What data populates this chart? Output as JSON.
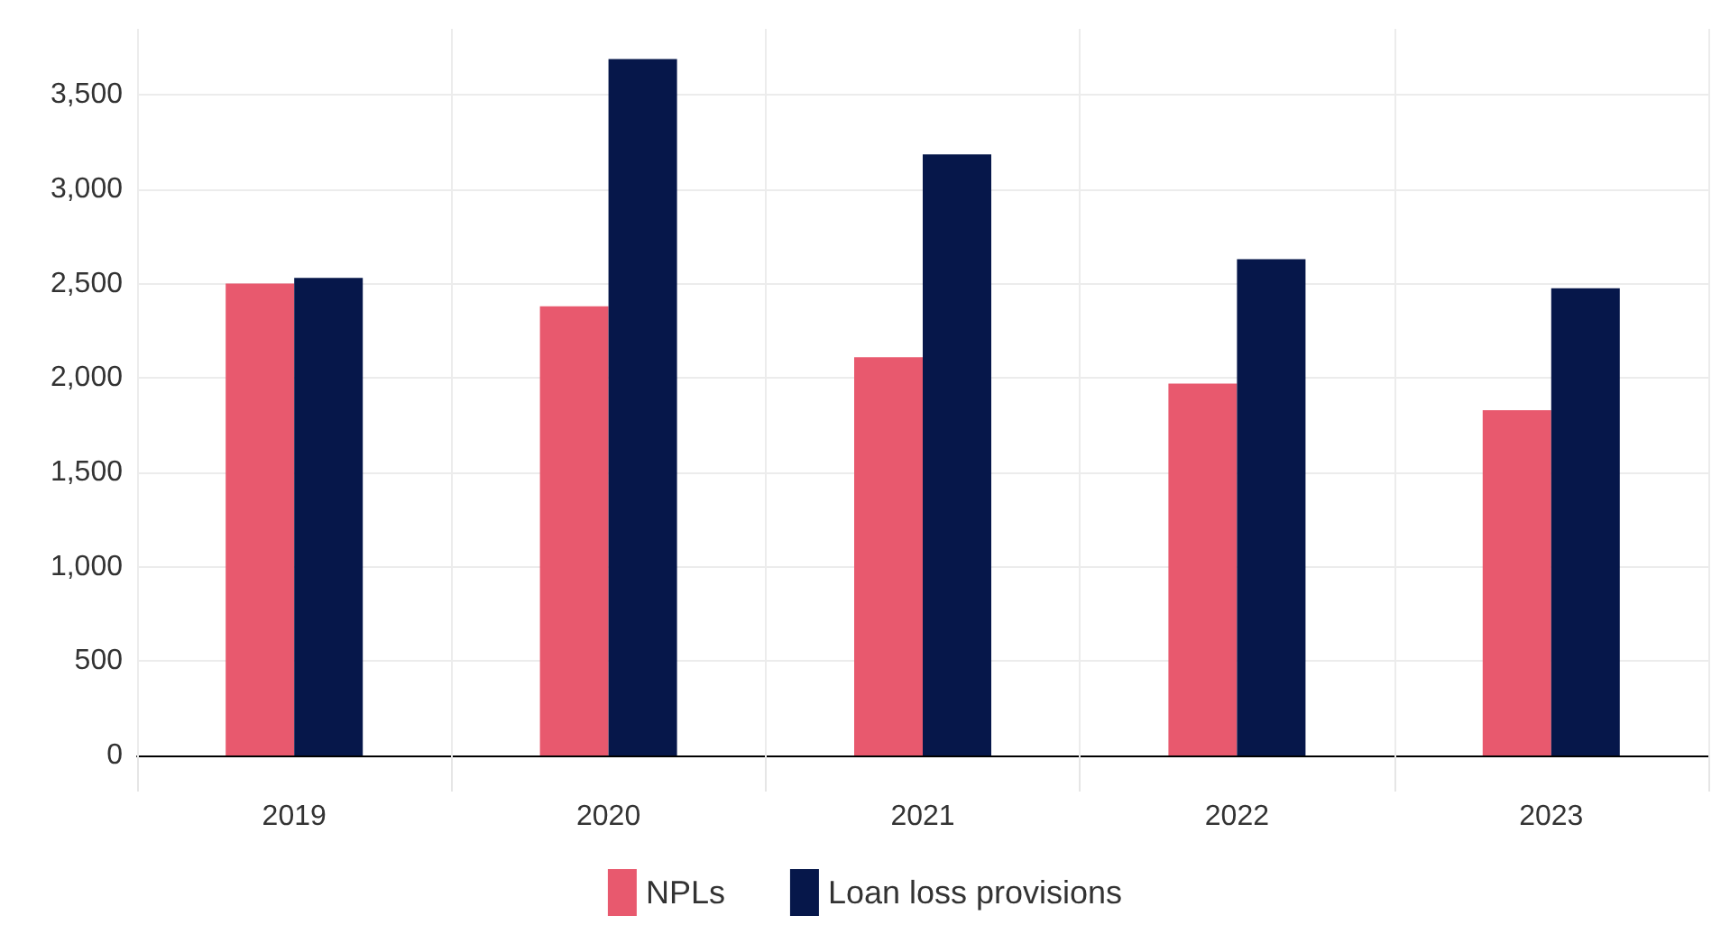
{
  "chart_data": {
    "type": "bar",
    "categories": [
      "2019",
      "2020",
      "2021",
      "2022",
      "2023"
    ],
    "series": [
      {
        "name": "NPLs",
        "color": "#e8596e",
        "values": [
          2500,
          2380,
          2110,
          1970,
          1830
        ]
      },
      {
        "name": "Loan loss provisions",
        "color": "#06174a",
        "values": [
          2530,
          3690,
          3185,
          2630,
          2475
        ]
      }
    ],
    "ylim": [
      0,
      3850
    ],
    "yticks": [
      0,
      {
        "value": 500,
        "label": "500"
      },
      {
        "value": 1000,
        "label": "1,000"
      },
      {
        "value": 1500,
        "label": "1,500"
      },
      {
        "value": 2000,
        "label": "2,000"
      },
      {
        "value": 2500,
        "label": "2,500"
      },
      {
        "value": 3000,
        "label": "3,000"
      },
      {
        "value": 3500,
        "label": "3,500"
      }
    ],
    "grid": true,
    "legend": "bottom"
  }
}
